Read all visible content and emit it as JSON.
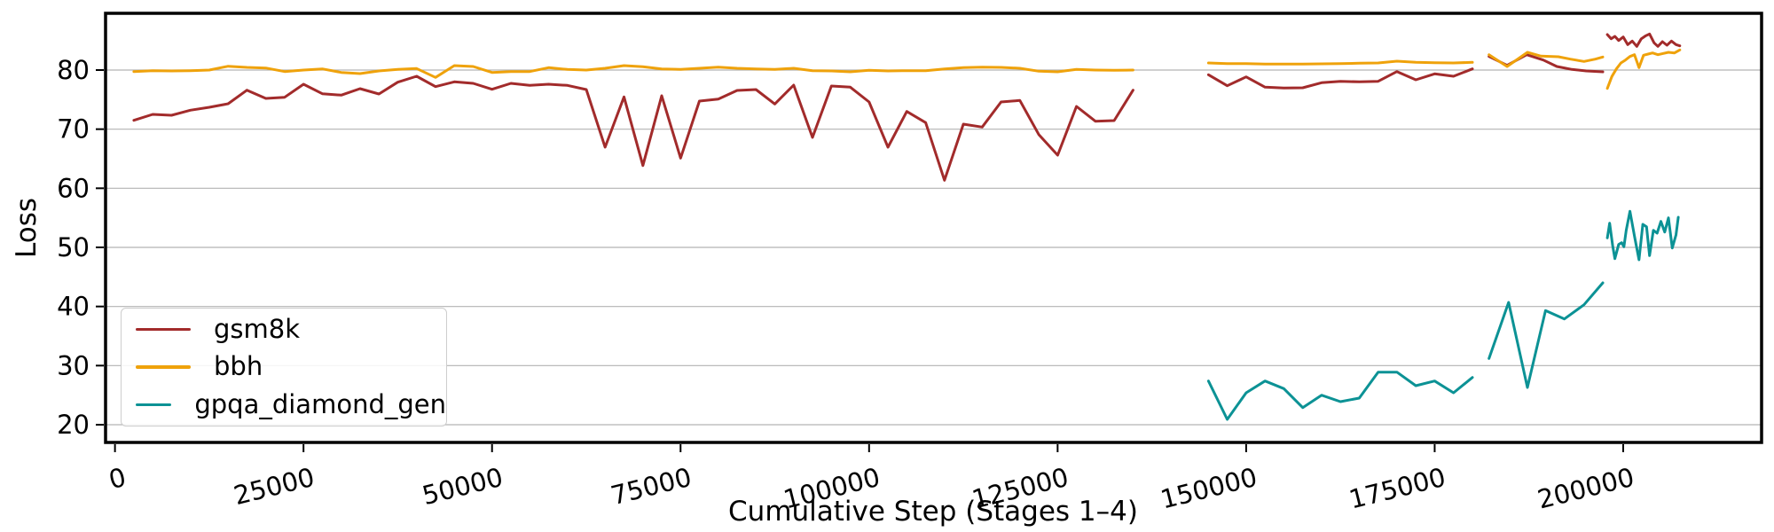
{
  "chart_data": {
    "type": "line",
    "title": "",
    "xlabel": "Cumulative Step (Stages 1–4)",
    "ylabel": "Loss",
    "xlim": [
      -1250,
      218350
    ],
    "ylim": [
      17.0,
      89.6
    ],
    "xticks": [
      0,
      25000,
      50000,
      75000,
      100000,
      125000,
      150000,
      175000,
      200000
    ],
    "yticks": [
      20,
      30,
      40,
      50,
      60,
      70,
      80
    ],
    "grid": "horizontal-only",
    "grid_color": "#b3b3b3",
    "spine_color": "#000000",
    "legend_position": "lower-left",
    "series": [
      {
        "name": "gsm8k",
        "color": "#a22b2b",
        "segments": [
          {
            "x": [
              2500,
              5000,
              7500,
              10000,
              12500,
              15000,
              17500,
              20000,
              22500,
              25000,
              27500,
              30000,
              32500,
              35000,
              37500,
              40000,
              42500,
              45000,
              47500,
              50000,
              52500,
              55000,
              57500,
              60000,
              62500,
              65000,
              67500,
              70000,
              72500,
              75000,
              77500,
              80000,
              82500,
              85000,
              87500,
              90000,
              92500,
              95000,
              97500,
              100000,
              102500,
              105000,
              107500,
              110000,
              112500,
              115000,
              117500,
              120000,
              122500,
              125000,
              127500,
              130000,
              132500,
              135000
            ],
            "y": [
              71.5,
              72.5,
              72.35,
              73.2,
              73.7,
              74.3,
              76.6,
              75.2,
              75.4,
              77.6,
              76.0,
              75.75,
              76.85,
              75.95,
              77.95,
              78.95,
              77.2,
              78.0,
              77.75,
              76.75,
              77.75,
              77.4,
              77.6,
              77.4,
              76.7,
              66.95,
              75.45,
              63.85,
              75.65,
              65.1,
              74.75,
              75.1,
              76.55,
              76.7,
              74.25,
              77.45,
              68.6,
              77.3,
              77.1,
              74.6,
              66.95,
              73.0,
              71.1,
              61.35,
              70.85,
              70.35,
              74.6,
              74.85,
              69.1,
              65.6,
              73.85,
              71.35,
              71.45,
              76.6
            ]
          },
          {
            "x": [
              145000,
              147500,
              150000,
              152500,
              155000,
              157500,
              160000,
              162500,
              165000,
              167500,
              170000,
              172500,
              175000,
              177500,
              180000
            ],
            "y": [
              79.2,
              77.35,
              78.85,
              77.1,
              76.95,
              77.0,
              77.85,
              78.1,
              78.0,
              78.1,
              79.75,
              78.35,
              79.35,
              78.95,
              80.2
            ]
          },
          {
            "x": [
              182200,
              184600,
              187200,
              189400,
              191200,
              193200,
              195100,
              197300
            ],
            "y": [
              82.3,
              80.8,
              82.6,
              81.7,
              80.6,
              80.1,
              79.85,
              79.7
            ]
          },
          {
            "x": [
              197900,
              198400,
              198900,
              199400,
              200000,
              200600,
              201200,
              201800,
              202400,
              203000,
              203500,
              204100,
              204600,
              205200,
              205800,
              206400,
              207000,
              207500
            ],
            "y": [
              86.0,
              85.3,
              85.7,
              85.0,
              85.6,
              84.3,
              84.9,
              84.0,
              85.3,
              85.8,
              86.1,
              84.6,
              84.0,
              84.8,
              84.2,
              84.9,
              84.3,
              84.1
            ]
          }
        ]
      },
      {
        "name": "bbh",
        "color": "#efa20b",
        "segments": [
          {
            "x": [
              2500,
              5000,
              7500,
              10000,
              12500,
              15000,
              17500,
              20000,
              22500,
              25000,
              27500,
              30000,
              32500,
              35000,
              37500,
              40000,
              42500,
              45000,
              47500,
              50000,
              52500,
              55000,
              57500,
              60000,
              62500,
              65000,
              67500,
              70000,
              72500,
              75000,
              77500,
              80000,
              82500,
              85000,
              87500,
              90000,
              92500,
              95000,
              97500,
              100000,
              102500,
              105000,
              107500,
              110000,
              112500,
              115000,
              117500,
              120000,
              122500,
              125000,
              127500,
              130000,
              132500,
              135000
            ],
            "y": [
              79.75,
              79.9,
              79.85,
              79.9,
              80.0,
              80.65,
              80.45,
              80.35,
              79.75,
              80.0,
              80.2,
              79.6,
              79.4,
              79.85,
              80.1,
              80.25,
              78.75,
              80.75,
              80.6,
              79.6,
              79.75,
              79.75,
              80.4,
              80.1,
              80.0,
              80.3,
              80.75,
              80.55,
              80.2,
              80.1,
              80.3,
              80.5,
              80.3,
              80.2,
              80.1,
              80.3,
              79.9,
              79.85,
              79.7,
              79.95,
              79.85,
              79.9,
              79.9,
              80.2,
              80.4,
              80.5,
              80.45,
              80.3,
              79.8,
              79.7,
              80.1,
              80.0,
              79.95,
              80.0
            ]
          },
          {
            "x": [
              145000,
              147500,
              150000,
              152500,
              155000,
              157500,
              160000,
              162500,
              165000,
              167500,
              170000,
              172500,
              175000,
              177500,
              180000
            ],
            "y": [
              81.2,
              81.1,
              81.1,
              81.0,
              81.0,
              81.0,
              81.05,
              81.1,
              81.15,
              81.2,
              81.5,
              81.3,
              81.25,
              81.2,
              81.3
            ]
          },
          {
            "x": [
              182200,
              184600,
              187300,
              189100,
              191400,
              193000,
              194800,
              196300,
              197300
            ],
            "y": [
              82.6,
              80.6,
              83.0,
              82.35,
              82.25,
              81.85,
              81.45,
              81.85,
              82.2
            ]
          },
          {
            "x": [
              197900,
              198500,
              199100,
              199700,
              200300,
              200900,
              201500,
              202100,
              202700,
              203300,
              203900,
              204600,
              205300,
              206000,
              206800,
              207500
            ],
            "y": [
              76.9,
              78.9,
              80.2,
              81.2,
              81.7,
              82.3,
              82.6,
              80.4,
              82.5,
              82.7,
              82.9,
              82.6,
              82.8,
              83.0,
              82.9,
              83.4
            ]
          }
        ]
      },
      {
        "name": "gpqa_diamond_gen",
        "color": "#0c9295",
        "segments": [
          {
            "x": [
              145000,
              147500,
              150000,
              152500,
              155000,
              157500,
              160000,
              162500,
              165000,
              167500,
              170000,
              172500,
              175000,
              177500,
              180000
            ],
            "y": [
              27.4,
              20.9,
              25.4,
              27.4,
              26.1,
              22.9,
              25.0,
              23.9,
              24.5,
              28.9,
              28.9,
              26.6,
              27.4,
              25.4,
              28.0
            ]
          },
          {
            "x": [
              182200,
              184800,
              187300,
              189700,
              192200,
              194800,
              197300
            ],
            "y": [
              31.2,
              40.7,
              26.3,
              39.3,
              37.9,
              40.3,
              44.0
            ]
          },
          {
            "x": [
              197900,
              198200,
              198600,
              198900,
              199400,
              199800,
              200100,
              200400,
              200900,
              201500,
              202100,
              202600,
              203100,
              203500,
              204000,
              204500,
              205000,
              205500,
              206000,
              206500,
              207000,
              207300
            ],
            "y": [
              51.6,
              54.1,
              50.3,
              48.1,
              50.5,
              50.8,
              50.1,
              52.9,
              56.1,
              51.9,
              47.9,
              53.9,
              53.5,
              48.6,
              52.9,
              52.4,
              54.4,
              52.6,
              55.0,
              49.9,
              52.1,
              55.1
            ]
          }
        ]
      }
    ]
  }
}
